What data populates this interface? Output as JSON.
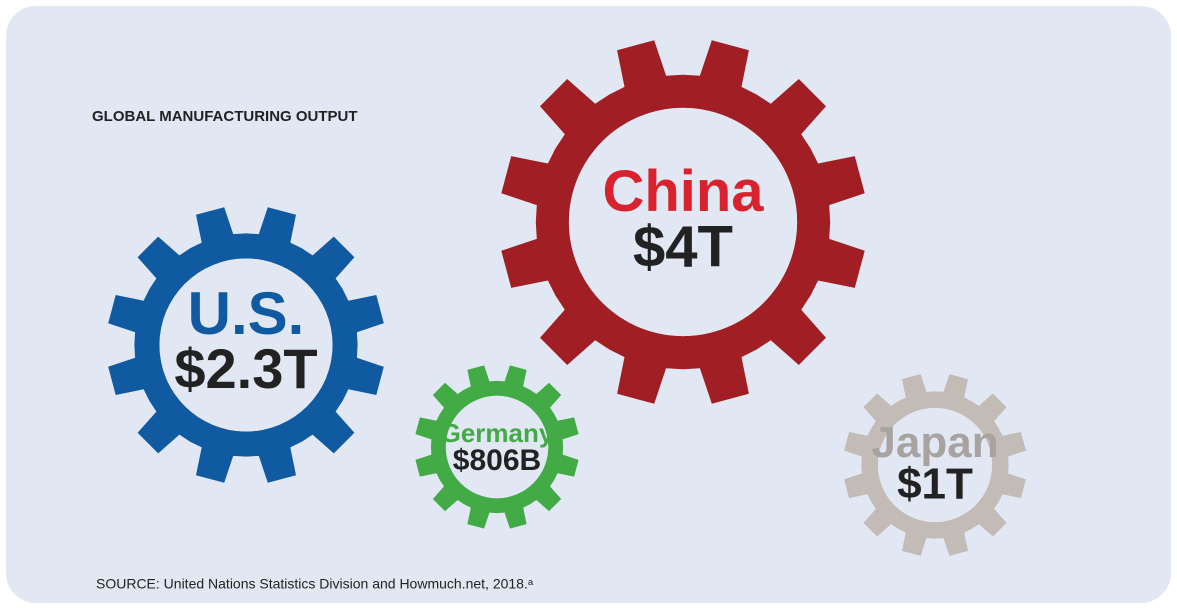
{
  "chart_data": {
    "type": "gear",
    "title": "GLOBAL MANUFACTURING OUTPUT",
    "source": "SOURCE: United Nations Statistics Division and Howmuch.net, 2018.ᵃ",
    "categories": [
      "U.S.",
      "China",
      "Germany",
      "Japan"
    ],
    "values": [
      2.3,
      4,
      0.806,
      1
    ],
    "value_labels": [
      "$2.3T",
      "$4T",
      "$806B",
      "$1T"
    ],
    "colors": [
      "#0f5aa0",
      "#a11f24",
      "#42ab46",
      "#c2bbb6"
    ],
    "label_colors": [
      "#0f5aa0",
      "#d8232f",
      "#42ab46",
      "#a8a39f"
    ]
  }
}
